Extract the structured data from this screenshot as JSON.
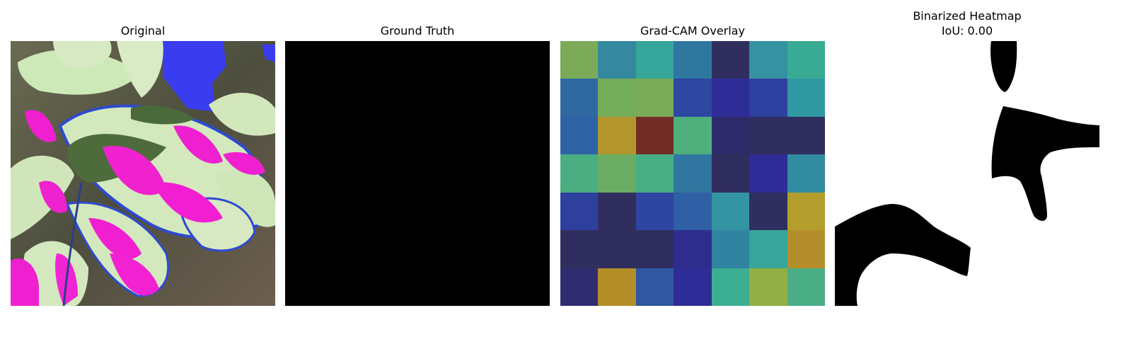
{
  "panels": {
    "original": {
      "title": "Original"
    },
    "ground_truth": {
      "title": "Ground Truth"
    },
    "gradcam": {
      "title": "Grad-CAM Overlay",
      "grid_colors": [
        [
          "#7bab58",
          "#34899f",
          "#36a59a",
          "#3077a0",
          "#2f2e5e",
          "#3492a2",
          "#39ab94"
        ],
        [
          "#3069a2",
          "#73ac5b",
          "#7aab57",
          "#2e47a0",
          "#2e2c97",
          "#2e40a0",
          "#3199a2"
        ],
        [
          "#2f63a4",
          "#b2962b",
          "#722e25",
          "#4fb07e",
          "#2f2b6a",
          "#2e2f5f",
          "#2f2e5e"
        ],
        [
          "#4bae83",
          "#6aad62",
          "#48ae86",
          "#3076a0",
          "#2f2e5e",
          "#2e2d98",
          "#318ba1"
        ],
        [
          "#2f3f9c",
          "#2f2e5e",
          "#2e45a0",
          "#2f5fa4",
          "#3395a2",
          "#2f2e5e",
          "#b39e2e"
        ],
        [
          "#2f2e5e",
          "#2f2e5e",
          "#2f2e5e",
          "#2e2d8e",
          "#3184a1",
          "#38a69a",
          "#b38e2a"
        ],
        [
          "#302c70",
          "#b38d28",
          "#2f57a2",
          "#2e2d97",
          "#3caf92",
          "#93ae45",
          "#4aae86"
        ]
      ]
    },
    "binarized": {
      "title_line1": "Binarized Heatmap",
      "title_line2": "IoU: 0.00"
    }
  },
  "colors": {
    "background": "#ffffff",
    "mask_fill": "#000000"
  }
}
